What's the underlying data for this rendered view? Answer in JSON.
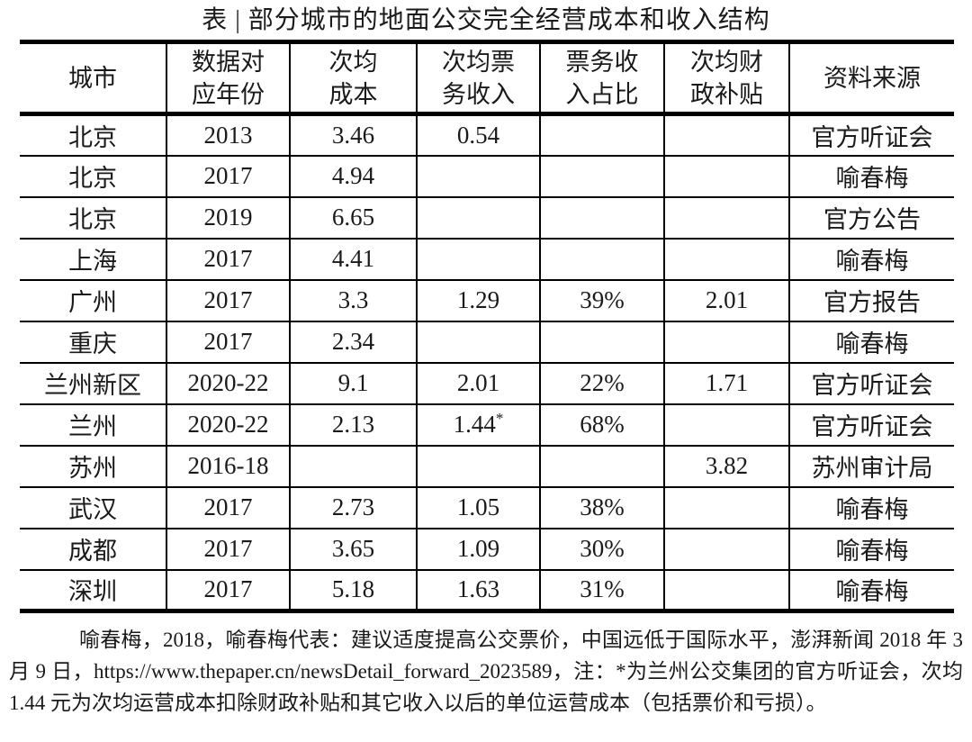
{
  "title": "表 | 部分城市的地面公交完全经营成本和收入结构",
  "table": {
    "headers": [
      "城市",
      "数据对\n应年份",
      "次均\n成本",
      "次均票\n务收入",
      "票务收\n入占比",
      "次均财\n政补贴",
      "资料来源"
    ],
    "rows": [
      [
        "北京",
        "2013",
        "3.46",
        "0.54",
        "",
        "",
        "官方听证会"
      ],
      [
        "北京",
        "2017",
        "4.94",
        "",
        "",
        "",
        "喻春梅"
      ],
      [
        "北京",
        "2019",
        "6.65",
        "",
        "",
        "",
        "官方公告"
      ],
      [
        "上海",
        "2017",
        "4.41",
        "",
        "",
        "",
        "喻春梅"
      ],
      [
        "广州",
        "2017",
        "3.3",
        "1.29",
        "39%",
        "2.01",
        "官方报告"
      ],
      [
        "重庆",
        "2017",
        "2.34",
        "",
        "",
        "",
        "喻春梅"
      ],
      [
        "兰州新区",
        "2020-22",
        "9.1",
        "2.01",
        "22%",
        "1.71",
        "官方听证会"
      ],
      [
        "兰州",
        "2020-22",
        "2.13",
        "1.44*",
        "68%",
        "",
        "官方听证会"
      ],
      [
        "苏州",
        "2016-18",
        "",
        "",
        "",
        "3.82",
        "苏州审计局"
      ],
      [
        "武汉",
        "2017",
        "2.73",
        "1.05",
        "38%",
        "",
        "喻春梅"
      ],
      [
        "成都",
        "2017",
        "3.65",
        "1.09",
        "30%",
        "",
        "喻春梅"
      ],
      [
        "深圳",
        "2017",
        "5.18",
        "1.63",
        "31%",
        "",
        "喻春梅"
      ]
    ]
  },
  "note": "喻春梅，2018，喻春梅代表：建议适度提高公交票价，中国远低于国际水平，澎湃新闻 2018 年 3 月 9 日，https://www.thepaper.cn/newsDetail_forward_2023589，注：*为兰州公交集团的官方听证会，次均 1.44 元为次均运营成本扣除财政补贴和其它收入以后的单位运营成本（包括票价和亏损）。",
  "colors": {
    "text": "#1a1a1a",
    "border": "#000000",
    "background": "#ffffff"
  }
}
